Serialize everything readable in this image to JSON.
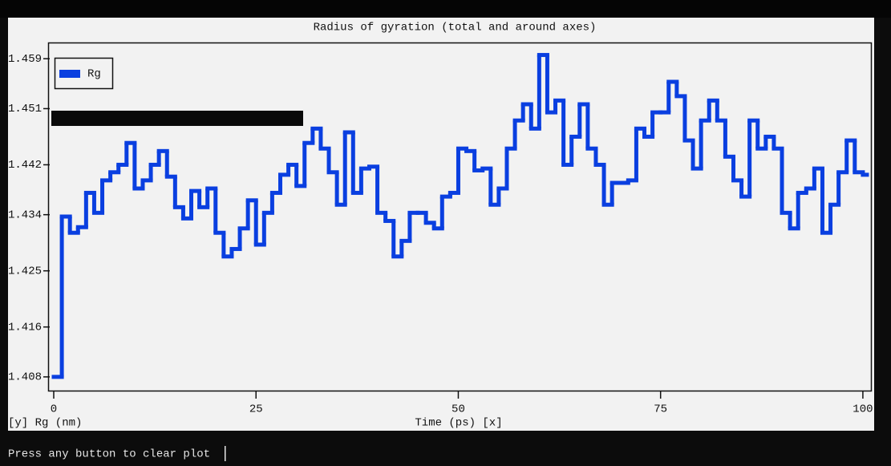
{
  "chart_data": {
    "type": "line",
    "title": "Radius of gyration (total and around axes)",
    "xlabel": "Time (ps) [x]",
    "ylabel": "[y] Rg (nm)",
    "x": [
      0,
      1,
      2,
      3,
      4,
      5,
      6,
      7,
      8,
      9,
      10,
      11,
      12,
      13,
      14,
      15,
      16,
      17,
      18,
      19,
      20,
      21,
      22,
      23,
      24,
      25,
      26,
      27,
      28,
      29,
      30,
      31,
      32,
      33,
      34,
      35,
      36,
      37,
      38,
      39,
      40,
      41,
      42,
      43,
      44,
      45,
      46,
      47,
      48,
      49,
      50,
      51,
      52,
      53,
      54,
      55,
      56,
      57,
      58,
      59,
      60,
      61,
      62,
      63,
      64,
      65,
      66,
      67,
      68,
      69,
      70,
      71,
      72,
      73,
      74,
      75,
      76,
      77,
      78,
      79,
      80,
      81,
      82,
      83,
      84,
      85,
      86,
      87,
      88,
      89,
      90,
      91,
      92,
      93,
      94,
      95,
      96,
      97,
      98,
      99,
      100
    ],
    "series": [
      {
        "name": "Rg",
        "color": "#0a3fe0",
        "values": [
          1.408,
          1.4337,
          1.4311,
          1.432,
          1.4375,
          1.4343,
          1.4395,
          1.4408,
          1.442,
          1.4455,
          1.4382,
          1.4395,
          1.442,
          1.4442,
          1.4401,
          1.4352,
          1.4334,
          1.4378,
          1.4352,
          1.4382,
          1.4311,
          1.4273,
          1.4285,
          1.4318,
          1.4363,
          1.4292,
          1.4343,
          1.4375,
          1.4404,
          1.442,
          1.4386,
          1.4455,
          1.4478,
          1.4446,
          1.4408,
          1.4356,
          1.4472,
          1.4375,
          1.4414,
          1.4417,
          1.4343,
          1.433,
          1.4273,
          1.4298,
          1.4343,
          1.4343,
          1.4327,
          1.4318,
          1.4369,
          1.4375,
          1.4446,
          1.4442,
          1.4411,
          1.4414,
          1.4356,
          1.4382,
          1.4446,
          1.4491,
          1.4517,
          1.4478,
          1.4596,
          1.4504,
          1.4523,
          1.442,
          1.4465,
          1.4517,
          1.4446,
          1.442,
          1.4356,
          1.4391,
          1.4391,
          1.4395,
          1.4478,
          1.4465,
          1.4504,
          1.4504,
          1.4553,
          1.453,
          1.4459,
          1.4414,
          1.4491,
          1.4523,
          1.4491,
          1.4433,
          1.4395,
          1.4369,
          1.4491,
          1.4446,
          1.4465,
          1.4446,
          1.4343,
          1.4318,
          1.4375,
          1.4382,
          1.4414,
          1.4311,
          1.4356,
          1.4408,
          1.4459,
          1.4408,
          1.4404
        ]
      }
    ],
    "xlim": [
      -0.7,
      101
    ],
    "xticks": [
      0,
      25,
      50,
      75,
      100
    ],
    "ylim": [
      1.4058,
      1.4616
    ],
    "yticks": [
      1.408,
      1.416,
      1.425,
      1.434,
      1.442,
      1.451,
      1.459
    ],
    "legend": "upper left"
  },
  "prompt": "Press any button to clear plot"
}
